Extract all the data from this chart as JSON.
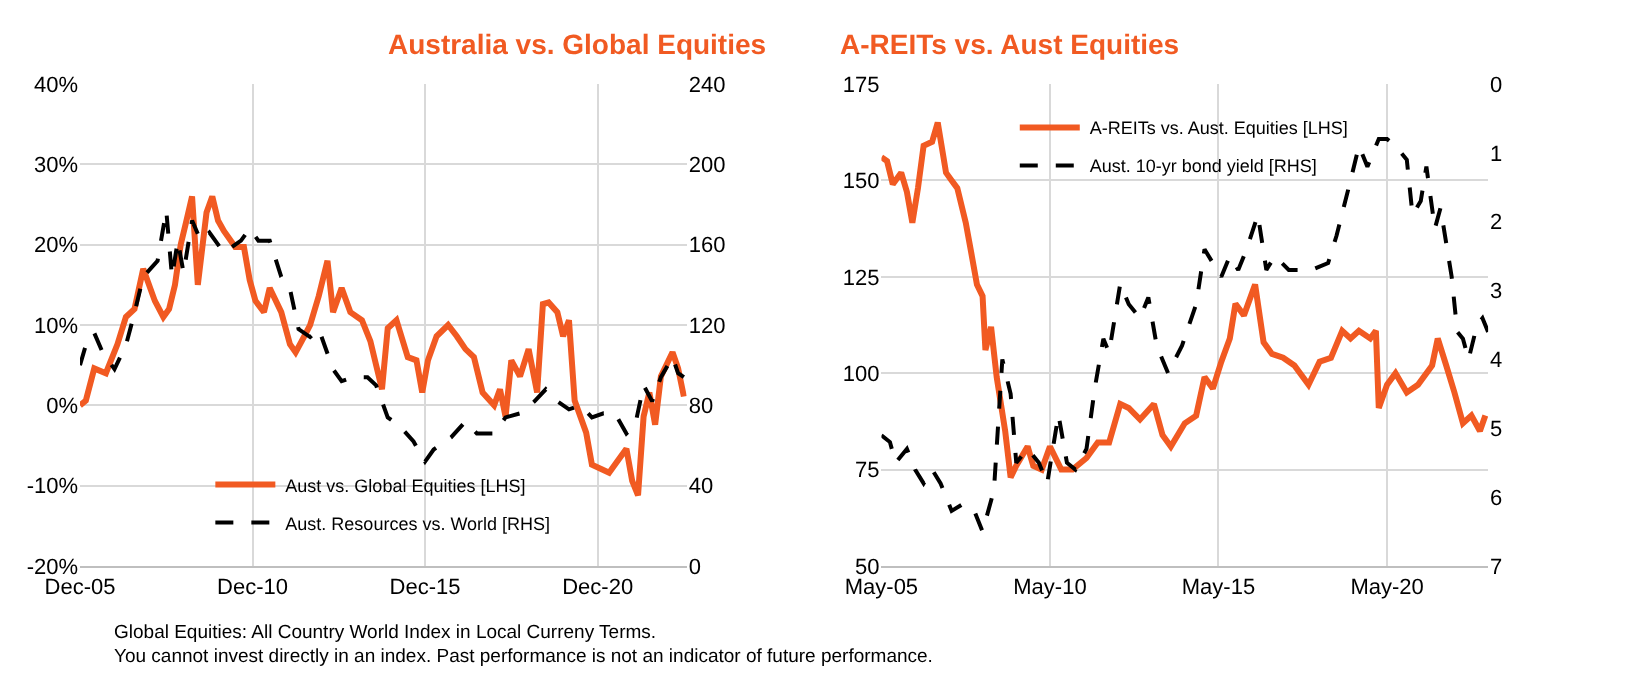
{
  "chart_data": [
    {
      "type": "line",
      "title": "Australia vs. Global Equities",
      "xlim": [
        "2005-12",
        "2023-07"
      ],
      "xticks": [
        {
          "value": "2005-12",
          "label": "Dec-05"
        },
        {
          "value": "2010-12",
          "label": "Dec-10"
        },
        {
          "value": "2015-12",
          "label": "Dec-15"
        },
        {
          "value": "2020-12",
          "label": "Dec-20"
        }
      ],
      "ylim": [
        -20,
        40
      ],
      "yticks": [
        {
          "value": -20,
          "label": "-20%"
        },
        {
          "value": -10,
          "label": "-10%"
        },
        {
          "value": 0,
          "label": "0%"
        },
        {
          "value": 10,
          "label": "10%"
        },
        {
          "value": 20,
          "label": "20%"
        },
        {
          "value": 30,
          "label": "30%"
        },
        {
          "value": 40,
          "label": "40%"
        }
      ],
      "y2lim": [
        0,
        240
      ],
      "y2ticks": [
        0,
        40,
        80,
        120,
        160,
        200,
        240
      ],
      "grid": true,
      "legend": "bottom",
      "marker": "none",
      "series": [
        {
          "name": "Aust vs. Global Equities [LHS]",
          "color": "#f15a22",
          "line_style": "solid",
          "x": [
            "2005-12",
            "2006-02",
            "2006-05",
            "2006-09",
            "2007-01",
            "2007-04",
            "2007-07",
            "2007-10",
            "2008-02",
            "2008-05",
            "2008-07",
            "2008-09",
            "2008-11",
            "2009-01",
            "2009-03",
            "2009-05",
            "2009-08",
            "2009-10",
            "2009-12",
            "2010-02",
            "2010-06",
            "2010-09",
            "2010-11",
            "2011-01",
            "2011-04",
            "2011-06",
            "2011-10",
            "2012-01",
            "2012-03",
            "2012-06",
            "2012-08",
            "2012-11",
            "2013-02",
            "2013-04",
            "2013-07",
            "2013-10",
            "2014-02",
            "2014-05",
            "2014-07",
            "2014-09",
            "2014-11",
            "2015-02",
            "2015-06",
            "2015-09",
            "2015-11",
            "2016-01",
            "2016-04",
            "2016-08",
            "2016-11",
            "2017-02",
            "2017-05",
            "2017-08",
            "2017-12",
            "2018-02",
            "2018-04",
            "2018-06",
            "2018-09",
            "2018-12",
            "2019-03",
            "2019-05",
            "2019-07",
            "2019-10",
            "2019-12",
            "2020-02",
            "2020-04",
            "2020-08",
            "2020-10",
            "2021-01",
            "2021-04",
            "2021-07",
            "2021-10",
            "2021-12",
            "2022-02",
            "2022-04",
            "2022-06",
            "2022-08",
            "2022-10",
            "2023-02",
            "2023-04",
            "2023-06"
          ],
          "values": [
            0,
            0.6,
            4.6,
            4,
            7.6,
            11,
            12,
            17,
            13,
            11,
            12,
            15,
            20,
            23,
            26,
            15,
            24,
            26,
            23,
            21.7,
            19.7,
            19.7,
            15.6,
            13,
            11.6,
            14.6,
            11.6,
            7.6,
            6.6,
            8.6,
            10,
            13.6,
            18,
            11.6,
            14.6,
            11.6,
            10.6,
            8,
            5,
            2,
            9.6,
            10.6,
            6,
            5.6,
            1.6,
            5.6,
            8.6,
            10,
            8.6,
            7,
            6,
            1.6,
            0,
            2,
            -1.4,
            5.6,
            3.6,
            7,
            1.6,
            12.6,
            12.8,
            11.6,
            8.6,
            10.6,
            0.6,
            -3.4,
            -7.4,
            -7.9,
            -8.4,
            -6.9,
            -5.4,
            -9.4,
            -11.2,
            -1.4,
            1.6,
            -2.4,
            3.6,
            6.6,
            4.6,
            1.1
          ]
        },
        {
          "name": "Aust. Resources vs. World [RHS]",
          "color": "#000000",
          "line_style": "dashed",
          "axis": "y2",
          "x": [
            "2005-12",
            "2006-02",
            "2006-05",
            "2006-08",
            "2006-12",
            "2007-04",
            "2007-07",
            "2007-10",
            "2008-03",
            "2008-06",
            "2008-08",
            "2008-10",
            "2008-12",
            "2009-03",
            "2009-06",
            "2009-09",
            "2010-02",
            "2010-08",
            "2010-11",
            "2011-02",
            "2011-06",
            "2011-10",
            "2012-01",
            "2012-04",
            "2012-08",
            "2012-11",
            "2013-04",
            "2013-07",
            "2013-11",
            "2014-04",
            "2014-07",
            "2014-11",
            "2015-03",
            "2015-08",
            "2015-12",
            "2016-03",
            "2016-09",
            "2017-02",
            "2017-06",
            "2017-12",
            "2018-04",
            "2018-09",
            "2019-02",
            "2019-06",
            "2019-10",
            "2020-02",
            "2020-06",
            "2020-10",
            "2021-02",
            "2021-06",
            "2021-10",
            "2022-01",
            "2022-04",
            "2022-07",
            "2022-10",
            "2023-02",
            "2023-04",
            "2023-06"
          ],
          "values": [
            100,
            110,
            116,
            106,
            98,
            110,
            126,
            144,
            152,
            177,
            144,
            162,
            146,
            172,
            162,
            166,
            156,
            162,
            168,
            162,
            162,
            144,
            138,
            118,
            114,
            118,
            98,
            92,
            94,
            94,
            90,
            74,
            70,
            62,
            52,
            58,
            64,
            72,
            66,
            66,
            74,
            76,
            82,
            88,
            82,
            78,
            80,
            74,
            76,
            76,
            66,
            70,
            90,
            82,
            94,
            104,
            96,
            94
          ]
        }
      ]
    },
    {
      "type": "line",
      "title": "A-REITs vs. Aust Equities",
      "xlim": [
        "2005-05",
        "2023-05"
      ],
      "xticks": [
        {
          "value": "2005-05",
          "label": "May-05"
        },
        {
          "value": "2010-05",
          "label": "May-10"
        },
        {
          "value": "2015-05",
          "label": "May-15"
        },
        {
          "value": "2020-05",
          "label": "May-20"
        }
      ],
      "ylim": [
        50,
        175
      ],
      "yticks": [
        50,
        75,
        100,
        125,
        150,
        175
      ],
      "y2lim": [
        7,
        0
      ],
      "y2ticks": [
        0,
        1,
        2,
        3,
        4,
        5,
        6,
        7
      ],
      "grid": true,
      "legend": "top",
      "marker": "none",
      "annotations": [
        "Global Equities: All Country World Index in Local Curreny Terms.",
        "You cannot invest directly in an index. Past performance is not an indicator of future performance."
      ],
      "series": [
        {
          "name": "A-REITs vs. Aust. Equities [LHS]",
          "color": "#f15a22",
          "line_style": "solid",
          "x": [
            "2005-05",
            "2005-07",
            "2005-09",
            "2005-12",
            "2006-02",
            "2006-04",
            "2006-06",
            "2006-08",
            "2006-11",
            "2007-01",
            "2007-04",
            "2007-06",
            "2007-08",
            "2007-11",
            "2008-01",
            "2008-03",
            "2008-05",
            "2008-06",
            "2008-08",
            "2008-10",
            "2009-01",
            "2009-03",
            "2009-05",
            "2009-09",
            "2009-11",
            "2010-02",
            "2010-05",
            "2010-09",
            "2011-01",
            "2011-06",
            "2011-10",
            "2012-02",
            "2012-06",
            "2012-09",
            "2013-01",
            "2013-06",
            "2013-09",
            "2013-12",
            "2014-05",
            "2014-09",
            "2014-12",
            "2015-03",
            "2015-06",
            "2015-09",
            "2015-11",
            "2016-02",
            "2016-06",
            "2016-09",
            "2016-12",
            "2017-04",
            "2017-08",
            "2018-01",
            "2018-05",
            "2018-09",
            "2019-01",
            "2019-04",
            "2019-07",
            "2019-11",
            "2020-01",
            "2020-02",
            "2020-05",
            "2020-08",
            "2020-12",
            "2021-04",
            "2021-09",
            "2021-11",
            "2022-02",
            "2022-05",
            "2022-08",
            "2022-11",
            "2023-02",
            "2023-04"
          ],
          "values": [
            156,
            155,
            149,
            152,
            147,
            139,
            148,
            159,
            160,
            165,
            152,
            150,
            148,
            139,
            131,
            123,
            120,
            106,
            112,
            99,
            85,
            73,
            76,
            81,
            76,
            75,
            81,
            75,
            75,
            78,
            82,
            82,
            92,
            91,
            88,
            92,
            84,
            81,
            87,
            89,
            99,
            96,
            103,
            109,
            118,
            115,
            123,
            108,
            105,
            104,
            102,
            97,
            103,
            104,
            111,
            109,
            111,
            109,
            111,
            91,
            97,
            100,
            95,
            97,
            102,
            109,
            102,
            95,
            87,
            89,
            85,
            89
          ]
        },
        {
          "name": "Aust. 10-yr bond yield [RHS]",
          "color": "#000000",
          "line_style": "dashed",
          "axis": "y2",
          "x": [
            "2005-05",
            "2005-08",
            "2005-10",
            "2006-02",
            "2006-05",
            "2006-08",
            "2006-11",
            "2007-02",
            "2007-06",
            "2007-10",
            "2008-02",
            "2008-05",
            "2008-09",
            "2008-12",
            "2009-03",
            "2009-05",
            "2009-09",
            "2010-01",
            "2010-04",
            "2010-08",
            "2010-11",
            "2011-02",
            "2011-06",
            "2011-09",
            "2011-12",
            "2012-02",
            "2012-06",
            "2012-09",
            "2013-01",
            "2013-04",
            "2013-07",
            "2013-11",
            "2014-04",
            "2014-09",
            "2014-12",
            "2015-03",
            "2015-06",
            "2015-09",
            "2015-12",
            "2016-03",
            "2016-07",
            "2016-10",
            "2017-01",
            "2017-06",
            "2017-10",
            "2018-02",
            "2018-08",
            "2018-11",
            "2019-04",
            "2019-07",
            "2019-10",
            "2020-02",
            "2020-05",
            "2020-08",
            "2020-12",
            "2021-02",
            "2021-05",
            "2021-07",
            "2021-10",
            "2021-12",
            "2022-04",
            "2022-06",
            "2022-08",
            "2022-10",
            "2023-01",
            "2023-03",
            "2023-05"
          ],
          "values": [
            5.1,
            5.2,
            5.5,
            5.3,
            5.6,
            5.8,
            5.6,
            5.8,
            6.2,
            6.1,
            6.2,
            6.5,
            5.9,
            4.0,
            4.5,
            5.5,
            5.3,
            5.5,
            5.8,
            4.8,
            5.5,
            5.6,
            5.3,
            4.4,
            3.7,
            3.9,
            2.9,
            3.2,
            3.4,
            3.1,
            3.8,
            4.2,
            3.8,
            3.2,
            2.4,
            2.6,
            2.8,
            2.5,
            2.7,
            2.4,
            1.9,
            2.7,
            2.5,
            2.7,
            2.7,
            2.7,
            2.6,
            2.2,
            1.4,
            0.9,
            1.2,
            0.8,
            0.8,
            0.9,
            1.1,
            1.9,
            1.7,
            1.2,
            2.1,
            1.8,
            2.8,
            3.6,
            3.7,
            4.0,
            3.5,
            3.4,
            3.6
          ]
        }
      ]
    }
  ]
}
